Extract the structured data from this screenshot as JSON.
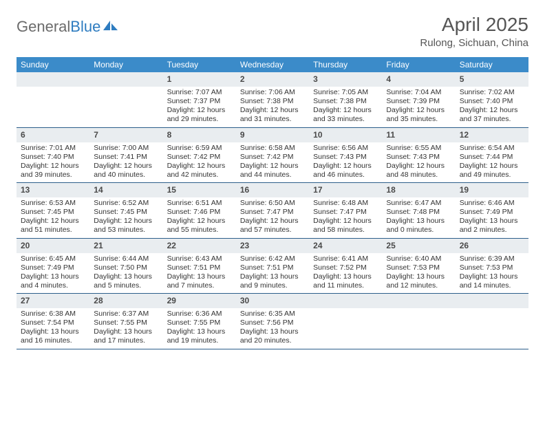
{
  "brand": {
    "part1": "General",
    "part2": "Blue"
  },
  "title": "April 2025",
  "subtitle": "Rulong, Sichuan, China",
  "colors": {
    "header_bg": "#3b8bc9",
    "header_text": "#ffffff",
    "daynum_bg": "#e9edf0",
    "week_border": "#2b5e8a",
    "logo_gray": "#6b6b6b",
    "logo_blue": "#2e7cc0",
    "text": "#333333"
  },
  "dow": [
    "Sunday",
    "Monday",
    "Tuesday",
    "Wednesday",
    "Thursday",
    "Friday",
    "Saturday"
  ],
  "layout": {
    "columns": 7,
    "rows": 5,
    "daynum_fontsize": 12,
    "body_fontsize": 10.5,
    "dow_fontsize": 12,
    "title_fontsize": 28,
    "subtitle_fontsize": 15
  },
  "weeks": [
    [
      null,
      null,
      {
        "n": "1",
        "sunrise": "Sunrise: 7:07 AM",
        "sunset": "Sunset: 7:37 PM",
        "dl1": "Daylight: 12 hours",
        "dl2": "and 29 minutes."
      },
      {
        "n": "2",
        "sunrise": "Sunrise: 7:06 AM",
        "sunset": "Sunset: 7:38 PM",
        "dl1": "Daylight: 12 hours",
        "dl2": "and 31 minutes."
      },
      {
        "n": "3",
        "sunrise": "Sunrise: 7:05 AM",
        "sunset": "Sunset: 7:38 PM",
        "dl1": "Daylight: 12 hours",
        "dl2": "and 33 minutes."
      },
      {
        "n": "4",
        "sunrise": "Sunrise: 7:04 AM",
        "sunset": "Sunset: 7:39 PM",
        "dl1": "Daylight: 12 hours",
        "dl2": "and 35 minutes."
      },
      {
        "n": "5",
        "sunrise": "Sunrise: 7:02 AM",
        "sunset": "Sunset: 7:40 PM",
        "dl1": "Daylight: 12 hours",
        "dl2": "and 37 minutes."
      }
    ],
    [
      {
        "n": "6",
        "sunrise": "Sunrise: 7:01 AM",
        "sunset": "Sunset: 7:40 PM",
        "dl1": "Daylight: 12 hours",
        "dl2": "and 39 minutes."
      },
      {
        "n": "7",
        "sunrise": "Sunrise: 7:00 AM",
        "sunset": "Sunset: 7:41 PM",
        "dl1": "Daylight: 12 hours",
        "dl2": "and 40 minutes."
      },
      {
        "n": "8",
        "sunrise": "Sunrise: 6:59 AM",
        "sunset": "Sunset: 7:42 PM",
        "dl1": "Daylight: 12 hours",
        "dl2": "and 42 minutes."
      },
      {
        "n": "9",
        "sunrise": "Sunrise: 6:58 AM",
        "sunset": "Sunset: 7:42 PM",
        "dl1": "Daylight: 12 hours",
        "dl2": "and 44 minutes."
      },
      {
        "n": "10",
        "sunrise": "Sunrise: 6:56 AM",
        "sunset": "Sunset: 7:43 PM",
        "dl1": "Daylight: 12 hours",
        "dl2": "and 46 minutes."
      },
      {
        "n": "11",
        "sunrise": "Sunrise: 6:55 AM",
        "sunset": "Sunset: 7:43 PM",
        "dl1": "Daylight: 12 hours",
        "dl2": "and 48 minutes."
      },
      {
        "n": "12",
        "sunrise": "Sunrise: 6:54 AM",
        "sunset": "Sunset: 7:44 PM",
        "dl1": "Daylight: 12 hours",
        "dl2": "and 49 minutes."
      }
    ],
    [
      {
        "n": "13",
        "sunrise": "Sunrise: 6:53 AM",
        "sunset": "Sunset: 7:45 PM",
        "dl1": "Daylight: 12 hours",
        "dl2": "and 51 minutes."
      },
      {
        "n": "14",
        "sunrise": "Sunrise: 6:52 AM",
        "sunset": "Sunset: 7:45 PM",
        "dl1": "Daylight: 12 hours",
        "dl2": "and 53 minutes."
      },
      {
        "n": "15",
        "sunrise": "Sunrise: 6:51 AM",
        "sunset": "Sunset: 7:46 PM",
        "dl1": "Daylight: 12 hours",
        "dl2": "and 55 minutes."
      },
      {
        "n": "16",
        "sunrise": "Sunrise: 6:50 AM",
        "sunset": "Sunset: 7:47 PM",
        "dl1": "Daylight: 12 hours",
        "dl2": "and 57 minutes."
      },
      {
        "n": "17",
        "sunrise": "Sunrise: 6:48 AM",
        "sunset": "Sunset: 7:47 PM",
        "dl1": "Daylight: 12 hours",
        "dl2": "and 58 minutes."
      },
      {
        "n": "18",
        "sunrise": "Sunrise: 6:47 AM",
        "sunset": "Sunset: 7:48 PM",
        "dl1": "Daylight: 13 hours",
        "dl2": "and 0 minutes."
      },
      {
        "n": "19",
        "sunrise": "Sunrise: 6:46 AM",
        "sunset": "Sunset: 7:49 PM",
        "dl1": "Daylight: 13 hours",
        "dl2": "and 2 minutes."
      }
    ],
    [
      {
        "n": "20",
        "sunrise": "Sunrise: 6:45 AM",
        "sunset": "Sunset: 7:49 PM",
        "dl1": "Daylight: 13 hours",
        "dl2": "and 4 minutes."
      },
      {
        "n": "21",
        "sunrise": "Sunrise: 6:44 AM",
        "sunset": "Sunset: 7:50 PM",
        "dl1": "Daylight: 13 hours",
        "dl2": "and 5 minutes."
      },
      {
        "n": "22",
        "sunrise": "Sunrise: 6:43 AM",
        "sunset": "Sunset: 7:51 PM",
        "dl1": "Daylight: 13 hours",
        "dl2": "and 7 minutes."
      },
      {
        "n": "23",
        "sunrise": "Sunrise: 6:42 AM",
        "sunset": "Sunset: 7:51 PM",
        "dl1": "Daylight: 13 hours",
        "dl2": "and 9 minutes."
      },
      {
        "n": "24",
        "sunrise": "Sunrise: 6:41 AM",
        "sunset": "Sunset: 7:52 PM",
        "dl1": "Daylight: 13 hours",
        "dl2": "and 11 minutes."
      },
      {
        "n": "25",
        "sunrise": "Sunrise: 6:40 AM",
        "sunset": "Sunset: 7:53 PM",
        "dl1": "Daylight: 13 hours",
        "dl2": "and 12 minutes."
      },
      {
        "n": "26",
        "sunrise": "Sunrise: 6:39 AM",
        "sunset": "Sunset: 7:53 PM",
        "dl1": "Daylight: 13 hours",
        "dl2": "and 14 minutes."
      }
    ],
    [
      {
        "n": "27",
        "sunrise": "Sunrise: 6:38 AM",
        "sunset": "Sunset: 7:54 PM",
        "dl1": "Daylight: 13 hours",
        "dl2": "and 16 minutes."
      },
      {
        "n": "28",
        "sunrise": "Sunrise: 6:37 AM",
        "sunset": "Sunset: 7:55 PM",
        "dl1": "Daylight: 13 hours",
        "dl2": "and 17 minutes."
      },
      {
        "n": "29",
        "sunrise": "Sunrise: 6:36 AM",
        "sunset": "Sunset: 7:55 PM",
        "dl1": "Daylight: 13 hours",
        "dl2": "and 19 minutes."
      },
      {
        "n": "30",
        "sunrise": "Sunrise: 6:35 AM",
        "sunset": "Sunset: 7:56 PM",
        "dl1": "Daylight: 13 hours",
        "dl2": "and 20 minutes."
      },
      null,
      null,
      null
    ]
  ]
}
